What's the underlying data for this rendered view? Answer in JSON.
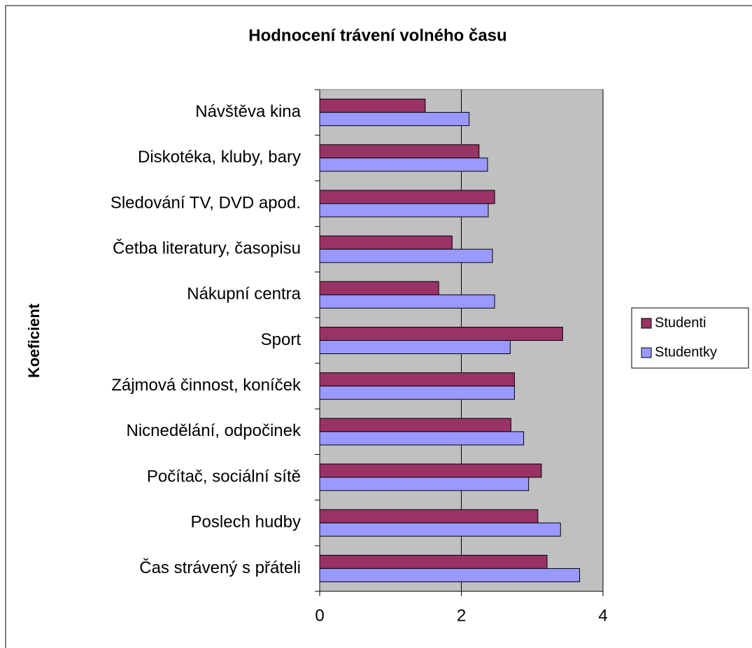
{
  "chart_data": {
    "type": "bar",
    "orientation": "horizontal",
    "title": "Hodnocení trávení volného času",
    "y_label": "Koeficient",
    "categories": [
      "Návštěva kina",
      "Diskotéka, kluby, bary",
      "Sledování TV, DVD apod.",
      "Četba literatury, časopisu",
      "Nákupní centra",
      "Sport",
      "Zájmová činnost, koníček",
      "Nicnedělání, odpočinek",
      "Počítač, sociální sítě",
      "Poslech hudby",
      "Čas strávený s přáteli"
    ],
    "series": [
      {
        "name": "Studenti",
        "color": "#993366",
        "values": [
          1.49,
          2.25,
          2.47,
          1.87,
          1.68,
          3.43,
          2.75,
          2.7,
          3.13,
          3.08,
          3.21
        ]
      },
      {
        "name": "Studentky",
        "color": "#9999ff",
        "values": [
          2.11,
          2.37,
          2.38,
          2.44,
          2.47,
          2.69,
          2.75,
          2.88,
          2.95,
          3.4,
          3.67
        ]
      }
    ],
    "xlim": [
      0,
      4
    ],
    "xticks": [
      0,
      2,
      4
    ],
    "grid": true,
    "legend": "right"
  }
}
